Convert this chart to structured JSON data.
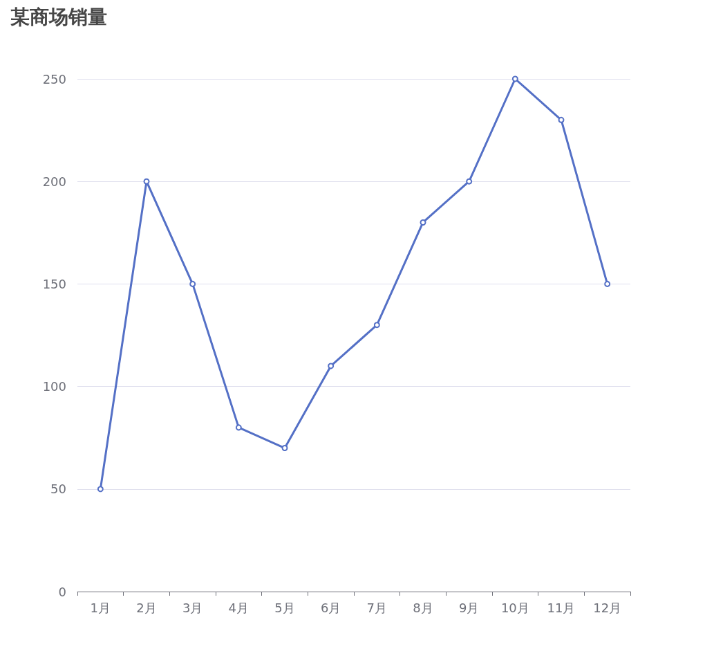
{
  "chart_data": {
    "type": "line",
    "title": "某商场销量",
    "categories": [
      "1月",
      "2月",
      "3月",
      "4月",
      "5月",
      "6月",
      "7月",
      "8月",
      "9月",
      "10月",
      "11月",
      "12月"
    ],
    "series": [
      {
        "color": "#5470c6",
        "values": [
          50,
          200,
          150,
          80,
          70,
          110,
          130,
          180,
          200,
          250,
          230,
          150
        ]
      }
    ],
    "ylim": [
      0,
      250
    ],
    "yticks": [
      0,
      50,
      100,
      150,
      200,
      250
    ],
    "grid": "y",
    "marker": "circle",
    "line_style": "solid"
  }
}
